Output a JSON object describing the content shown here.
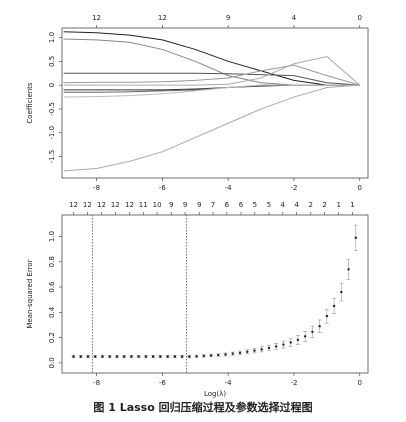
{
  "chart_data": [
    {
      "type": "line",
      "ylabel": "Coefficients",
      "x": [
        -9,
        -8,
        -7,
        -6,
        -5,
        -4,
        -3,
        -2,
        -1,
        0
      ],
      "series": [
        {
          "color": "#222222",
          "values": [
            1.12,
            1.1,
            1.05,
            0.95,
            0.75,
            0.5,
            0.3,
            0.1,
            0,
            0
          ]
        },
        {
          "color": "#888888",
          "values": [
            0.97,
            0.95,
            0.9,
            0.75,
            0.5,
            0.2,
            0.05,
            0,
            0,
            0
          ]
        },
        {
          "color": "#555555",
          "values": [
            0.25,
            0.25,
            0.25,
            0.25,
            0.25,
            0.24,
            0.22,
            0.2,
            0.05,
            0
          ]
        },
        {
          "color": "#999999",
          "values": [
            0.05,
            0.06,
            0.06,
            0.07,
            0.1,
            0.15,
            0.3,
            0.42,
            0.2,
            0
          ]
        },
        {
          "color": "#aaaaaa",
          "values": [
            0,
            0,
            0,
            0,
            0,
            0.02,
            0.15,
            0.45,
            0.6,
            0
          ]
        },
        {
          "color": "#333333",
          "values": [
            -0.1,
            -0.1,
            -0.1,
            -0.1,
            -0.08,
            -0.05,
            -0.02,
            0,
            0,
            0
          ]
        },
        {
          "color": "#666666",
          "values": [
            -0.15,
            -0.15,
            -0.14,
            -0.12,
            -0.1,
            -0.05,
            0,
            0,
            0,
            0
          ]
        },
        {
          "color": "#bbbbbb",
          "values": [
            -0.25,
            -0.24,
            -0.22,
            -0.18,
            -0.12,
            -0.05,
            0,
            0,
            0,
            0
          ]
        },
        {
          "color": "#aaaaaa",
          "values": [
            -1.8,
            -1.75,
            -1.6,
            -1.4,
            -1.1,
            -0.8,
            -0.5,
            -0.25,
            -0.05,
            0
          ]
        }
      ],
      "xlim": [
        -9.05,
        0.25
      ],
      "ylim": [
        -1.95,
        1.2
      ],
      "xticks": [
        -8,
        -6,
        -4,
        -2,
        0
      ],
      "x2ticks": [
        {
          "value": -8,
          "label": "12"
        },
        {
          "value": -6,
          "label": "12"
        },
        {
          "value": -4,
          "label": "9"
        },
        {
          "value": -2,
          "label": "4"
        },
        {
          "value": 0,
          "label": "0"
        }
      ],
      "yticks": [
        {
          "value": 1,
          "label": "1.0"
        },
        0.5,
        0,
        -0.5,
        {
          "value": -1,
          "label": "-1.0"
        },
        -1.5
      ]
    },
    {
      "type": "errorbar",
      "xlabel": "Log(λ)",
      "ylabel": "Mean-squared Error",
      "color": "#222222",
      "error_color": "#999999",
      "x": [
        -8.7,
        -8.48,
        -8.26,
        -8.04,
        -7.82,
        -7.6,
        -7.38,
        -7.16,
        -6.94,
        -6.72,
        -6.5,
        -6.28,
        -6.06,
        -5.84,
        -5.62,
        -5.4,
        -5.18,
        -4.96,
        -4.74,
        -4.52,
        -4.3,
        -4.08,
        -3.86,
        -3.64,
        -3.42,
        -3.2,
        -2.98,
        -2.76,
        -2.54,
        -2.32,
        -2.1,
        -1.88,
        -1.66,
        -1.44,
        -1.22,
        -1.0,
        -0.78,
        -0.56,
        -0.34,
        -0.12
      ],
      "values": [
        0.05,
        0.05,
        0.05,
        0.05,
        0.05,
        0.05,
        0.05,
        0.05,
        0.05,
        0.05,
        0.05,
        0.05,
        0.05,
        0.05,
        0.05,
        0.05,
        0.05,
        0.052,
        0.055,
        0.058,
        0.062,
        0.067,
        0.073,
        0.08,
        0.088,
        0.097,
        0.107,
        0.118,
        0.13,
        0.145,
        0.162,
        0.182,
        0.21,
        0.245,
        0.29,
        0.37,
        0.45,
        0.56,
        0.74,
        0.99
      ],
      "errors": [
        0.01,
        0.01,
        0.01,
        0.01,
        0.01,
        0.01,
        0.01,
        0.01,
        0.01,
        0.01,
        0.01,
        0.01,
        0.01,
        0.01,
        0.01,
        0.01,
        0.01,
        0.01,
        0.01,
        0.01,
        0.01,
        0.012,
        0.013,
        0.014,
        0.016,
        0.018,
        0.02,
        0.022,
        0.025,
        0.028,
        0.032,
        0.036,
        0.04,
        0.045,
        0.05,
        0.055,
        0.06,
        0.07,
        0.08,
        0.1
      ],
      "vlines": [
        -8.12,
        -5.27
      ],
      "xlim": [
        -9.05,
        0.25
      ],
      "ylim": [
        -0.08,
        1.17
      ],
      "xticks": [
        -8,
        -6,
        -4,
        -2,
        0
      ],
      "x2ticks": [
        {
          "value": -8.7,
          "label": "12"
        },
        {
          "value": -8.28,
          "label": "12"
        },
        {
          "value": -7.85,
          "label": "12"
        },
        {
          "value": -7.43,
          "label": "12"
        },
        {
          "value": -7.0,
          "label": "12"
        },
        {
          "value": -6.58,
          "label": "11"
        },
        {
          "value": -6.16,
          "label": "10"
        },
        {
          "value": -5.73,
          "label": "9"
        },
        {
          "value": -5.31,
          "label": "9"
        },
        {
          "value": -4.88,
          "label": "9"
        },
        {
          "value": -4.46,
          "label": "7"
        },
        {
          "value": -4.04,
          "label": "6"
        },
        {
          "value": -3.61,
          "label": "6"
        },
        {
          "value": -3.19,
          "label": "5"
        },
        {
          "value": -2.76,
          "label": "5"
        },
        {
          "value": -2.34,
          "label": "4"
        },
        {
          "value": -1.92,
          "label": "4"
        },
        {
          "value": -1.49,
          "label": "2"
        },
        {
          "value": -1.07,
          "label": "2"
        },
        {
          "value": -0.64,
          "label": "1"
        },
        {
          "value": -0.22,
          "label": "1"
        }
      ],
      "yticks": [
        {
          "value": 0,
          "label": "0.0"
        },
        0.2,
        0.4,
        0.6,
        0.8,
        {
          "value": 1,
          "label": "1.0"
        }
      ]
    }
  ],
  "caption": "图 1   Lasso 回归压缩过程及参数选择过程图"
}
